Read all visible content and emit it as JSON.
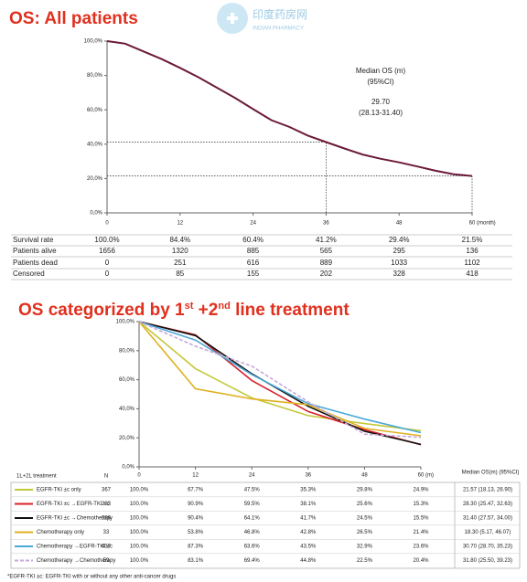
{
  "watermark": {
    "title": "印度药房网",
    "subtitle": "INDIAN PHARMACY"
  },
  "footnote": "*EGFR-TKI ±c: EGFR-TKI with or without any other anti-cancer drugs",
  "chart_data": [
    {
      "type": "line",
      "title": "OS: All patients",
      "color": "#6b1a3a",
      "x_label": "(month)",
      "x": [
        0,
        3,
        6,
        9,
        12,
        15,
        18,
        21,
        24,
        27,
        30,
        33,
        36,
        39,
        42,
        45,
        48,
        51,
        54,
        57,
        60
      ],
      "values": [
        100,
        98.5,
        94,
        89.5,
        84.4,
        79,
        73,
        67,
        60.4,
        54,
        50,
        45,
        41.2,
        37.5,
        34,
        31.5,
        29.4,
        27,
        24.5,
        22.5,
        21.5
      ],
      "xlim": [
        0,
        60
      ],
      "xticks": [
        0,
        12,
        24,
        36,
        48,
        60
      ],
      "ylim": [
        0,
        100
      ],
      "yticks": [
        {
          "value": 0,
          "label": "0,0%"
        },
        {
          "value": 20,
          "label": "20,0%"
        },
        {
          "value": 40,
          "label": "40,0%"
        },
        {
          "value": 60,
          "label": "60,0%"
        },
        {
          "value": 80,
          "label": "80,0%"
        },
        {
          "value": 100,
          "label": "100,0%"
        }
      ],
      "reference_points": [
        {
          "x": 36,
          "y": 41.2
        },
        {
          "x": 60,
          "y": 21.5
        }
      ],
      "annotations": [
        "Median OS (m)",
        "(95%CI)",
        "29.70",
        "(28.13-31.40)"
      ],
      "table": {
        "rows": [
          {
            "label": "Survival rate",
            "cells": [
              "100.0%",
              "84.4%",
              "60.4%",
              "41.2%",
              "29.4%",
              "21.5%"
            ]
          },
          {
            "label": "Patients alive",
            "cells": [
              1656,
              1320,
              885,
              565,
              295,
              136
            ]
          },
          {
            "label": "Patients dead",
            "cells": [
              0,
              251,
              616,
              889,
              1033,
              1102
            ]
          },
          {
            "label": "Censored",
            "cells": [
              0,
              85,
              155,
              202,
              328,
              418
            ]
          }
        ]
      }
    },
    {
      "type": "line",
      "title_parts": [
        "OS categorized by 1",
        "st",
        " +2",
        "nd",
        " line treatment"
      ],
      "x_label": "(m)",
      "x": [
        0,
        12,
        24,
        36,
        48,
        60
      ],
      "xlim": [
        0,
        60
      ],
      "xticks": [
        0,
        12,
        24,
        36,
        48,
        60
      ],
      "ylim": [
        0,
        100
      ],
      "yticks": [
        {
          "value": 0,
          "label": "0,0%"
        },
        {
          "value": 20,
          "label": "20,0%"
        },
        {
          "value": 40,
          "label": "40,0%"
        },
        {
          "value": 60,
          "label": "60,0%"
        },
        {
          "value": 80,
          "label": "80,0%"
        },
        {
          "value": 100,
          "label": "100,0%"
        }
      ],
      "table_header": [
        "1L+2L treatment",
        "N"
      ],
      "median_header": "Median OS(m) (95%CI)",
      "series": [
        {
          "name": "EGFR-TKI ±c only",
          "color": "#c4c83a",
          "n": 367,
          "values": [
            100,
            67.7,
            47.5,
            35.3,
            29.8,
            24.9
          ],
          "value_labels": [
            "100.0%",
            "67.7%",
            "47.5%",
            "35.3%",
            "29.8%",
            "24.9%"
          ],
          "median": "21.57 (18.13, 26.90)"
        },
        {
          "name": "EGFR-TKI ±c →EGFR-TKI ±c",
          "color": "#d8202a",
          "n": 223,
          "values": [
            100,
            90.9,
            59.5,
            38.1,
            25.6,
            15.3
          ],
          "value_labels": [
            "100.0%",
            "90.9%",
            "59.5%",
            "38.1%",
            "25.6%",
            "15.3%"
          ],
          "median": "28.30 (25.47, 32.63)"
        },
        {
          "name": "EGFR-TKI ±c →Chemotherapy",
          "color": "#111111",
          "n": 336,
          "values": [
            100,
            90.4,
            64.1,
            41.7,
            24.5,
            15.5
          ],
          "value_labels": [
            "100.0%",
            "90.4%",
            "64.1%",
            "41.7%",
            "24.5%",
            "15.5%"
          ],
          "median": "31.40 (27.57, 34.00)"
        },
        {
          "name": "Chemotherapy only",
          "color": "#e0b020",
          "n": 33,
          "values": [
            100,
            53.8,
            46.8,
            42.8,
            26.5,
            21.4
          ],
          "value_labels": [
            "100.0%",
            "53.8%",
            "46.8%",
            "42.8%",
            "26.5%",
            "21.4%"
          ],
          "median": "18.30 (5.17, 46.07)"
        },
        {
          "name": "Chemotherapy →EGFR-TKI ±c",
          "color": "#4aa8d8",
          "n": 437,
          "values": [
            100,
            87.3,
            63.6,
            43.5,
            32.9,
            23.6
          ],
          "value_labels": [
            "100.0%",
            "87.3%",
            "63.6%",
            "43.5%",
            "32.9%",
            "23.6%"
          ],
          "median": "30.70 (28.70, 35.23)"
        },
        {
          "name": "Chemotherapy →Chemotherapy",
          "color": "#c8a8d8",
          "dashed": true,
          "n": 59,
          "values": [
            100,
            83.1,
            69.4,
            44.8,
            22.5,
            20.4
          ],
          "value_labels": [
            "100.0%",
            "83.1%",
            "69.4%",
            "44.8%",
            "22.5%",
            "20.4%"
          ],
          "median": "31.80 (25.50, 39.23)"
        }
      ]
    }
  ]
}
